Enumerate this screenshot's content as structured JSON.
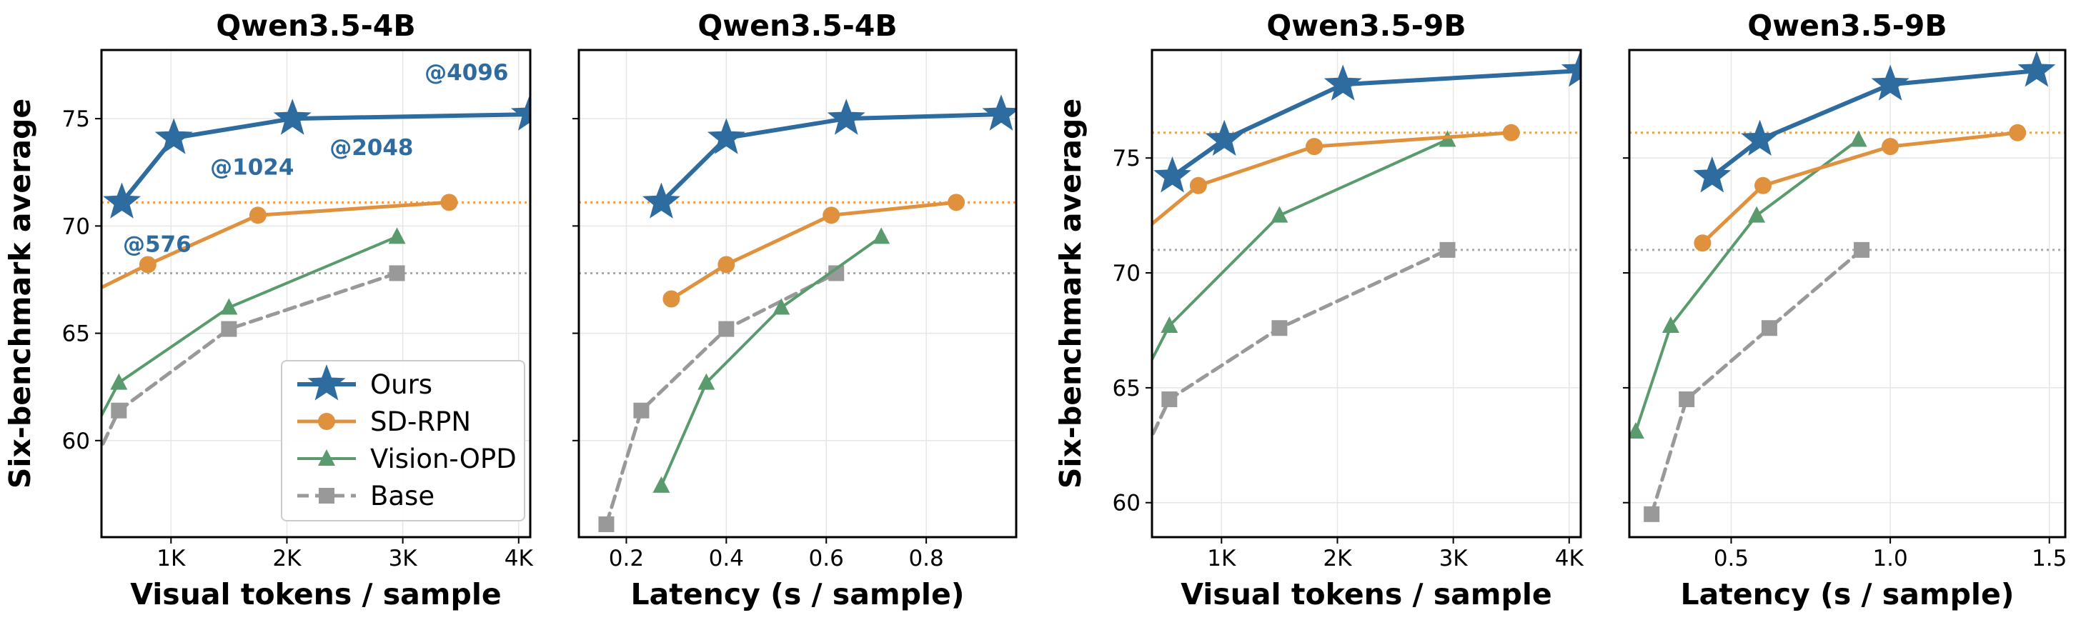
{
  "colors": {
    "ours": "#2e6b9f",
    "sdrpn": "#e0913d",
    "vopd": "#5a9b6e",
    "base": "#999999"
  },
  "legend": [
    {
      "key": "ours",
      "label": "Ours"
    },
    {
      "key": "sdrpn",
      "label": "SD-RPN"
    },
    {
      "key": "vopd",
      "label": "Vision-OPD"
    },
    {
      "key": "base",
      "label": "Base"
    }
  ],
  "shared_ylabel": "Six-benchmark average",
  "chart_data": [
    {
      "type": "line",
      "title": "Qwen3.5-4B",
      "xlabel": "Visual tokens / sample",
      "ylabel": "Six-benchmark average",
      "xlim": [
        400,
        4100
      ],
      "ylim": [
        55.5,
        78.2
      ],
      "xticks": [
        1000,
        2000,
        3000,
        4000
      ],
      "xticklabels": [
        "1K",
        "2K",
        "3K",
        "4K"
      ],
      "yticks": [
        60,
        65,
        70,
        75
      ],
      "yticklabels": [
        "60",
        "65",
        "70",
        "75"
      ],
      "show_yticklabels": true,
      "grid": true,
      "legend_position": "lower-right",
      "hlines": [
        {
          "y": 71.1,
          "key": "sdrpn"
        },
        {
          "y": 67.8,
          "key": "base"
        }
      ],
      "series": [
        {
          "key": "ours",
          "name": "Ours",
          "x": [
            576,
            1024,
            2048,
            4096
          ],
          "y": [
            71.1,
            74.1,
            75.0,
            75.2
          ]
        },
        {
          "key": "sdrpn",
          "name": "SD-RPN",
          "x": [
            200,
            800,
            1750,
            3400
          ],
          "y": [
            66.6,
            68.2,
            70.5,
            71.1
          ]
        },
        {
          "key": "vopd",
          "name": "Vision-OPD",
          "x": [
            80,
            550,
            1500,
            2950
          ],
          "y": [
            57.9,
            62.7,
            66.2,
            69.5
          ]
        },
        {
          "key": "base",
          "name": "Base",
          "x": [
            80,
            550,
            1500,
            2950
          ],
          "y": [
            56.1,
            61.4,
            65.2,
            67.8
          ]
        }
      ],
      "annotations": [
        {
          "text": "@576",
          "x": 880,
          "y": 68.8
        },
        {
          "text": "@1024",
          "x": 1700,
          "y": 72.4
        },
        {
          "text": "@2048",
          "x": 2730,
          "y": 73.3
        },
        {
          "text": "@4096",
          "x": 3550,
          "y": 76.8
        }
      ]
    },
    {
      "type": "line",
      "title": "Qwen3.5-4B",
      "xlabel": "Latency (s / sample)",
      "ylabel": "",
      "xlim": [
        0.105,
        0.98
      ],
      "ylim": [
        55.5,
        78.2
      ],
      "xticks": [
        0.2,
        0.4,
        0.6,
        0.8
      ],
      "xticklabels": [
        "0.2",
        "0.4",
        "0.6",
        "0.8"
      ],
      "yticks": [
        60,
        65,
        70,
        75
      ],
      "yticklabels": [],
      "show_yticklabels": false,
      "grid": true,
      "hlines": [
        {
          "y": 71.1,
          "key": "sdrpn"
        },
        {
          "y": 67.8,
          "key": "base"
        }
      ],
      "series": [
        {
          "key": "ours",
          "name": "Ours",
          "x": [
            0.27,
            0.4,
            0.64,
            0.95
          ],
          "y": [
            71.1,
            74.1,
            75.0,
            75.2
          ]
        },
        {
          "key": "sdrpn",
          "name": "SD-RPN",
          "x": [
            0.29,
            0.4,
            0.61,
            0.86
          ],
          "y": [
            66.6,
            68.2,
            70.5,
            71.1
          ]
        },
        {
          "key": "vopd",
          "name": "Vision-OPD",
          "x": [
            0.27,
            0.36,
            0.51,
            0.71
          ],
          "y": [
            57.9,
            62.7,
            66.2,
            69.5
          ]
        },
        {
          "key": "base",
          "name": "Base",
          "x": [
            0.16,
            0.23,
            0.4,
            0.62
          ],
          "y": [
            56.1,
            61.4,
            65.2,
            67.8
          ]
        }
      ]
    },
    {
      "type": "line",
      "title": "Qwen3.5-9B",
      "xlabel": "Visual tokens / sample",
      "ylabel": "Six-benchmark average",
      "xlim": [
        400,
        4100
      ],
      "ylim": [
        58.5,
        79.7
      ],
      "xticks": [
        1000,
        2000,
        3000,
        4000
      ],
      "xticklabels": [
        "1K",
        "2K",
        "3K",
        "4K"
      ],
      "yticks": [
        60,
        65,
        70,
        75
      ],
      "yticklabels": [
        "60",
        "65",
        "70",
        "75"
      ],
      "show_yticklabels": true,
      "grid": true,
      "hlines": [
        {
          "y": 76.1,
          "key": "sdrpn"
        },
        {
          "y": 71.0,
          "key": "base"
        }
      ],
      "series": [
        {
          "key": "ours",
          "name": "Ours",
          "x": [
            576,
            1024,
            2048,
            4096
          ],
          "y": [
            74.2,
            75.8,
            78.2,
            78.8
          ]
        },
        {
          "key": "sdrpn",
          "name": "SD-RPN",
          "x": [
            200,
            800,
            1800,
            3500
          ],
          "y": [
            71.3,
            73.8,
            75.5,
            76.1
          ]
        },
        {
          "key": "vopd",
          "name": "Vision-OPD",
          "x": [
            80,
            550,
            1500,
            2950
          ],
          "y": [
            63.1,
            67.7,
            72.5,
            75.8
          ]
        },
        {
          "key": "base",
          "name": "Base",
          "x": [
            80,
            550,
            1500,
            2950
          ],
          "y": [
            59.5,
            64.5,
            67.6,
            71.0
          ]
        }
      ]
    },
    {
      "type": "line",
      "title": "Qwen3.5-9B",
      "xlabel": "Latency (s / sample)",
      "ylabel": "",
      "xlim": [
        0.18,
        1.55
      ],
      "ylim": [
        58.5,
        79.7
      ],
      "xticks": [
        0.5,
        1.0,
        1.5
      ],
      "xticklabels": [
        "0.5",
        "1.0",
        "1.5"
      ],
      "yticks": [
        60,
        65,
        70,
        75
      ],
      "yticklabels": [],
      "show_yticklabels": false,
      "grid": true,
      "hlines": [
        {
          "y": 76.1,
          "key": "sdrpn"
        },
        {
          "y": 71.0,
          "key": "base"
        }
      ],
      "series": [
        {
          "key": "ours",
          "name": "Ours",
          "x": [
            0.44,
            0.59,
            1.0,
            1.46
          ],
          "y": [
            74.2,
            75.8,
            78.2,
            78.8
          ]
        },
        {
          "key": "sdrpn",
          "name": "SD-RPN",
          "x": [
            0.41,
            0.6,
            1.0,
            1.4
          ],
          "y": [
            71.3,
            73.8,
            75.5,
            76.1
          ]
        },
        {
          "key": "vopd",
          "name": "Vision-OPD",
          "x": [
            0.2,
            0.31,
            0.58,
            0.9
          ],
          "y": [
            63.1,
            67.7,
            72.5,
            75.8
          ]
        },
        {
          "key": "base",
          "name": "Base",
          "x": [
            0.25,
            0.36,
            0.62,
            0.91
          ],
          "y": [
            59.5,
            64.5,
            67.6,
            71.0
          ]
        }
      ]
    }
  ]
}
